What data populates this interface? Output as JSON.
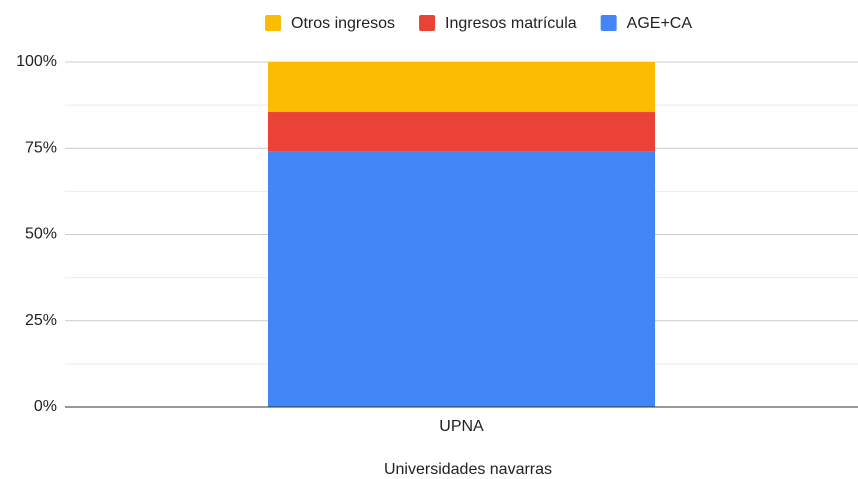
{
  "chart_data": {
    "type": "stacked_bar",
    "categories": [
      "UPNA"
    ],
    "series": [
      {
        "name": "AGE+CA",
        "color": "#4285f4",
        "values": [
          74
        ]
      },
      {
        "name": "Ingresos matrícula",
        "color": "#ea4335",
        "values": [
          11.5
        ]
      },
      {
        "name": "Otros ingresos",
        "color": "#fbbc04",
        "values": [
          14.5
        ]
      }
    ],
    "xlabel": "Universidades navarras",
    "ylim": [
      0,
      100
    ],
    "yticks": [
      {
        "value": 0,
        "label": "0%"
      },
      {
        "value": 25,
        "label": "25%"
      },
      {
        "value": 50,
        "label": "50%"
      },
      {
        "value": 75,
        "label": "75%"
      },
      {
        "value": 100,
        "label": "100%"
      }
    ],
    "minor_yticks": [
      12.5,
      37.5,
      62.5,
      87.5
    ],
    "grid": true,
    "legend": "top"
  }
}
